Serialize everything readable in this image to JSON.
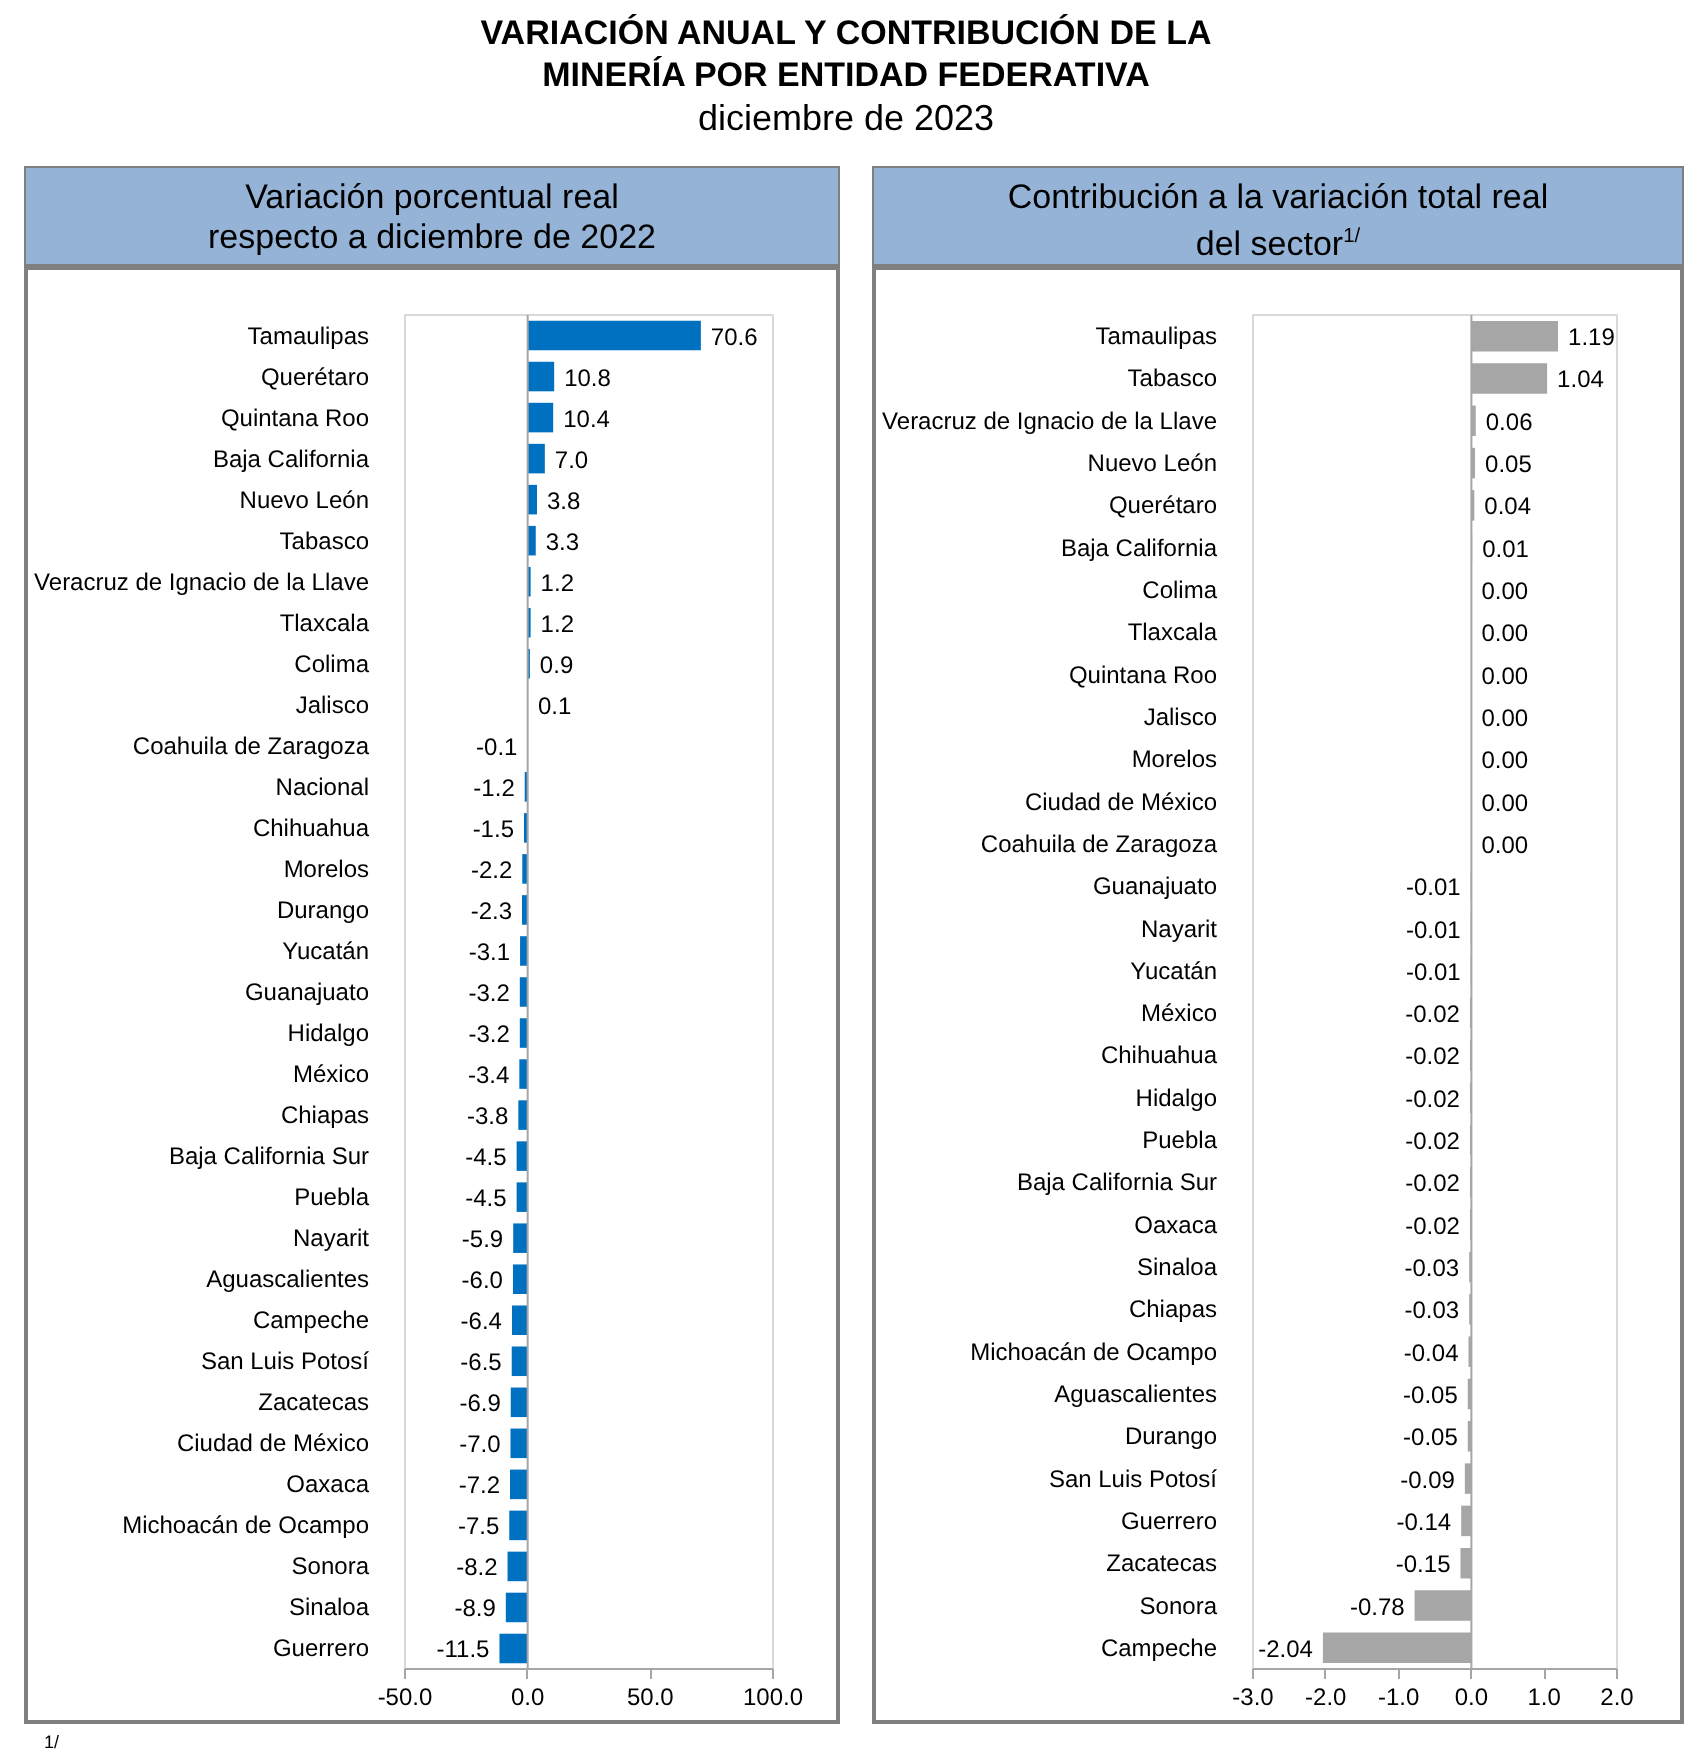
{
  "chart_data": [
    {
      "type": "other",
      "title": "VARIACIÓN ANUAL Y CONTRIBUCIÓN DE LA\nMINERÍA POR ENTIDAD FEDERATIVA",
      "subtitle": "diciembre de 2023",
      "annotations": [
        "1/"
      ]
    },
    {
      "type": "bar",
      "orientation": "horizontal",
      "title": "Variación porcentual real\nrespecto a diciembre de 2022",
      "color": "#0070c0",
      "categories": [
        "Tamaulipas",
        "Querétaro",
        "Quintana Roo",
        "Baja California",
        "Nuevo León",
        "Tabasco",
        "Veracruz de Ignacio de la Llave",
        "Tlaxcala",
        "Colima",
        "Jalisco",
        "Coahuila de Zaragoza",
        "Nacional",
        "Chihuahua",
        "Morelos",
        "Durango",
        "Yucatán",
        "Guanajuato",
        "Hidalgo",
        "México",
        "Chiapas",
        "Baja California Sur",
        "Puebla",
        "Nayarit",
        "Aguascalientes",
        "Campeche",
        "San Luis Potosí",
        "Zacatecas",
        "Ciudad de México",
        "Oaxaca",
        "Michoacán de Ocampo",
        "Sonora",
        "Sinaloa",
        "Guerrero"
      ],
      "values": [
        70.6,
        10.8,
        10.4,
        7.0,
        3.8,
        3.3,
        1.2,
        1.2,
        0.9,
        0.1,
        -0.1,
        -1.2,
        -1.5,
        -2.2,
        -2.3,
        -3.1,
        -3.2,
        -3.2,
        -3.4,
        -3.8,
        -4.5,
        -4.5,
        -5.9,
        -6.0,
        -6.4,
        -6.5,
        -6.9,
        -7.0,
        -7.2,
        -7.5,
        -8.2,
        -8.9,
        -11.5
      ],
      "value_labels": [
        "70.6",
        "10.8",
        "10.4",
        "7.0",
        "3.8",
        "3.3",
        "1.2",
        "1.2",
        "0.9",
        "0.1",
        "-0.1",
        "-1.2",
        "-1.5",
        "-2.2",
        "-2.3",
        "-3.1",
        "-3.2",
        "-3.2",
        "-3.4",
        "-3.8",
        "-4.5",
        "-4.5",
        "-5.9",
        "-6.0",
        "-6.4",
        "-6.5",
        "-6.9",
        "-7.0",
        "-7.2",
        "-7.5",
        "-8.2",
        "-8.9",
        "-11.5"
      ],
      "xlim": [
        -50,
        100
      ],
      "xticks": [
        {
          "value": -50,
          "label": "-50.0"
        },
        {
          "value": 0,
          "label": "0.0"
        },
        {
          "value": 50,
          "label": "50.0"
        },
        {
          "value": 100,
          "label": "100.0"
        }
      ]
    },
    {
      "type": "bar",
      "orientation": "horizontal",
      "title": "Contribución a la variación total real\ndel sector$^{1/}$",
      "color": "#a6a6a6",
      "categories": [
        "Tamaulipas",
        "Tabasco",
        "Veracruz de Ignacio de la Llave",
        "Nuevo León",
        "Querétaro",
        "Baja California",
        "Colima",
        "Tlaxcala",
        "Quintana Roo",
        "Jalisco",
        "Morelos",
        "Ciudad de México",
        "Coahuila de Zaragoza",
        "Guanajuato",
        "Nayarit",
        "Yucatán",
        "México",
        "Chihuahua",
        "Hidalgo",
        "Puebla",
        "Baja California Sur",
        "Oaxaca",
        "Sinaloa",
        "Chiapas",
        "Michoacán de Ocampo",
        "Aguascalientes",
        "Durango",
        "San Luis Potosí",
        "Guerrero",
        "Zacatecas",
        "Sonora",
        "Campeche"
      ],
      "values": [
        1.19,
        1.04,
        0.06,
        0.05,
        0.04,
        0.01,
        0.0,
        0.0,
        0.0,
        0.0,
        0.0,
        0.0,
        0.0,
        -0.01,
        -0.01,
        -0.01,
        -0.02,
        -0.02,
        -0.02,
        -0.02,
        -0.02,
        -0.02,
        -0.03,
        -0.03,
        -0.04,
        -0.05,
        -0.05,
        -0.09,
        -0.14,
        -0.15,
        -0.78,
        -2.04
      ],
      "value_labels": [
        "1.19",
        "1.04",
        "0.06",
        "0.05",
        "0.04",
        "0.01",
        "0.00",
        "0.00",
        "0.00",
        "0.00",
        "0.00",
        "0.00",
        "0.00",
        "-0.01",
        "-0.01",
        "-0.01",
        "-0.02",
        "-0.02",
        "-0.02",
        "-0.02",
        "-0.02",
        "-0.02",
        "-0.03",
        "-0.03",
        "-0.04",
        "-0.05",
        "-0.05",
        "-0.09",
        "-0.14",
        "-0.15",
        "-0.78",
        "-2.04"
      ],
      "xlim": [
        -3,
        2
      ],
      "xticks": [
        {
          "value": -3,
          "label": "-3.0"
        },
        {
          "value": -2,
          "label": "-2.0"
        },
        {
          "value": -1,
          "label": "-1.0"
        },
        {
          "value": 0,
          "label": "0.0"
        },
        {
          "value": 1,
          "label": "1.0"
        },
        {
          "value": 2,
          "label": "2.0"
        }
      ]
    }
  ]
}
